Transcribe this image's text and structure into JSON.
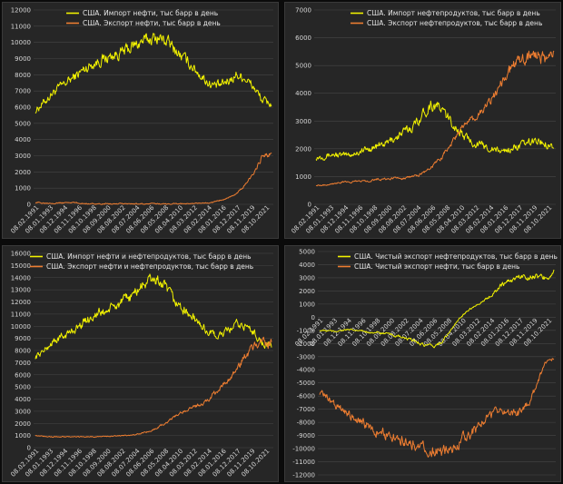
{
  "colors": {
    "yellow": "#f2f200",
    "orange": "#ed7d31",
    "grid": "#464646",
    "text": "#d6d6d6"
  },
  "chart_data": [
    {
      "type": "line",
      "ylim": [
        0,
        12000
      ],
      "ystep": 1000,
      "ticks_y": [
        "0",
        "1000",
        "2000",
        "3000",
        "4000",
        "5000",
        "6000",
        "7000",
        "8000",
        "9000",
        "10000",
        "11000",
        "12000"
      ],
      "ticks_x": [
        "08.02.1991",
        "08.01.1993",
        "08.12.1994",
        "08.11.1996",
        "08.10.1998",
        "08.09.2000",
        "08.08.2002",
        "08.07.2004",
        "08.06.2006",
        "08.05.2008",
        "08.04.2010",
        "08.03.2012",
        "08.02.2014",
        "08.01.2016",
        "08.12.2017",
        "08.11.2019",
        "08.10.2021"
      ],
      "series": [
        {
          "name": "США. Импорт нефти, тыс барр в день",
          "color": "yellow",
          "values": [
            5800,
            6300,
            6900,
            7300,
            7700,
            8100,
            8500,
            8800,
            9000,
            9200,
            9400,
            9700,
            10000,
            10200,
            10300,
            10100,
            9500,
            9000,
            8500,
            7900,
            7400,
            7300,
            7600,
            8000,
            7800,
            7200,
            6400,
            6200
          ]
        },
        {
          "name": "США. Экспорт нефти, тыс барр в день",
          "color": "orange",
          "values": [
            110,
            90,
            80,
            90,
            120,
            70,
            40,
            30,
            30,
            20,
            30,
            30,
            30,
            30,
            30,
            30,
            40,
            40,
            40,
            60,
            90,
            230,
            400,
            650,
            1200,
            2000,
            3000,
            3100
          ]
        }
      ]
    },
    {
      "type": "line",
      "ylim": [
        0,
        7000
      ],
      "ystep": 1000,
      "ticks_y": [
        "0",
        "1000",
        "2000",
        "3000",
        "4000",
        "5000",
        "6000",
        "7000"
      ],
      "ticks_x": [
        "08.02.1991",
        "08.01.1993",
        "08.12.1994",
        "08.11.1996",
        "08.10.1998",
        "08.09.2000",
        "08.08.2002",
        "08.07.2004",
        "08.06.2006",
        "08.05.2008",
        "08.04.2010",
        "08.03.2012",
        "08.02.2014",
        "08.01.2016",
        "08.12.2017",
        "08.11.2019",
        "08.10.2021"
      ],
      "series": [
        {
          "name": "США. Импорт нефтепродуктов, тыс барр в день",
          "color": "yellow",
          "values": [
            1700,
            1750,
            1800,
            1750,
            1800,
            1900,
            2000,
            2100,
            2200,
            2400,
            2600,
            2800,
            3200,
            3600,
            3500,
            3100,
            2700,
            2400,
            2200,
            2100,
            2000,
            1900,
            2000,
            2100,
            2200,
            2300,
            2200,
            2100
          ]
        },
        {
          "name": "США. Экспорт нефтепродуктов, тыс барр в день",
          "color": "orange",
          "values": [
            700,
            700,
            750,
            800,
            800,
            850,
            850,
            900,
            900,
            950,
            950,
            1000,
            1100,
            1300,
            1600,
            2000,
            2500,
            2900,
            3100,
            3400,
            3800,
            4400,
            4800,
            5200,
            5300,
            5400,
            5200,
            5500
          ]
        }
      ]
    },
    {
      "type": "line",
      "ylim": [
        0,
        16000
      ],
      "ystep": 1000,
      "ticks_y": [
        "0",
        "1000",
        "2000",
        "3000",
        "4000",
        "5000",
        "6000",
        "7000",
        "8000",
        "9000",
        "10000",
        "11000",
        "12000",
        "13000",
        "14000",
        "15000",
        "16000"
      ],
      "ticks_x": [
        "08.02.1991",
        "08.01.1993",
        "08.12.1994",
        "08.11.1996",
        "08.10.1998",
        "08.09.2000",
        "08.08.2002",
        "08.07.2004",
        "08.06.2006",
        "08.05.2008",
        "08.04.2010",
        "08.03.2012",
        "08.02.2014",
        "08.01.2016",
        "08.12.2017",
        "08.11.2019",
        "08.10.2021"
      ],
      "series": [
        {
          "name": "США. Импорт нефти и нефтепродуктов, тыс барр в день",
          "color": "yellow",
          "values": [
            7500,
            8000,
            8700,
            9100,
            9500,
            10000,
            10600,
            11000,
            11200,
            11600,
            12000,
            12500,
            13200,
            13800,
            13800,
            13000,
            12000,
            11300,
            10700,
            10000,
            9400,
            9200,
            9600,
            10100,
            10000,
            9500,
            8600,
            8300
          ]
        },
        {
          "name": "США. Экспорт нефти и нефтепродуктов, тыс барр в день",
          "color": "orange",
          "values": [
            1000,
            950,
            900,
            900,
            900,
            900,
            900,
            900,
            950,
            950,
            1000,
            1050,
            1150,
            1350,
            1650,
            2100,
            2600,
            3000,
            3300,
            3600,
            4100,
            4900,
            5500,
            6400,
            7500,
            8300,
            8600,
            8600
          ]
        }
      ]
    },
    {
      "type": "line",
      "ylim": [
        -12000,
        5000
      ],
      "ystep": 1000,
      "ticks_y": [
        "5000",
        "4000",
        "3000",
        "2000",
        "1000",
        "0",
        "-1000",
        "-2000",
        "-3000",
        "-4000",
        "-5000",
        "-6000",
        "-7000",
        "-8000",
        "-9000",
        "-10000",
        "-11000",
        "-12000"
      ],
      "ticks_x": [
        "08.02.1991",
        "08.01.1993",
        "08.12.1994",
        "08.11.1996",
        "08.10.1998",
        "08.09.2000",
        "08.08.2002",
        "08.07.2004",
        "08.06.2006",
        "08.05.2008",
        "08.04.2010",
        "08.03.2012",
        "08.02.2014",
        "08.01.2016",
        "08.12.2017",
        "08.11.2019",
        "08.10.2021"
      ],
      "series": [
        {
          "name": "США. Чистый экспорт нефтепродуктов, тыс барр в день",
          "color": "yellow",
          "values": [
            -1000,
            -1050,
            -1050,
            -950,
            -1000,
            -1050,
            -1150,
            -1200,
            -1300,
            -1450,
            -1650,
            -1800,
            -2100,
            -2300,
            -1900,
            -1100,
            -200,
            500,
            900,
            1300,
            1800,
            2500,
            2800,
            3100,
            3100,
            3100,
            3000,
            3400
          ]
        },
        {
          "name": "США. Чистый экспорт нефти, тыс барр в день",
          "color": "orange",
          "values": [
            -5700,
            -6200,
            -6800,
            -7200,
            -7600,
            -8000,
            -8500,
            -8800,
            -9000,
            -9200,
            -9400,
            -9700,
            -10000,
            -10200,
            -10300,
            -10100,
            -9500,
            -9000,
            -8500,
            -7800,
            -7300,
            -7100,
            -7200,
            -7300,
            -6600,
            -5200,
            -3400,
            -3100
          ]
        }
      ]
    }
  ]
}
